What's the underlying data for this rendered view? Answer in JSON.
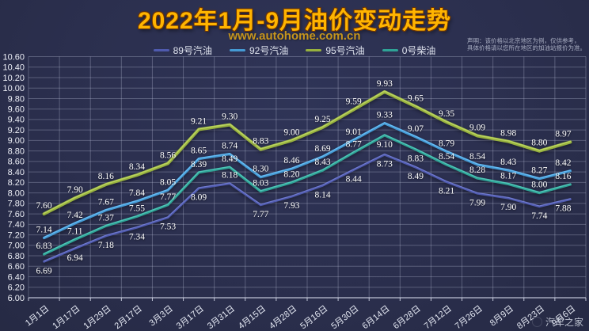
{
  "header": {
    "title": "2022年1月-9月油价变动走势",
    "subtitle": "www.autohome.com.cn",
    "disclaimer_line1": "声明：该价格以北京地区为例，仅供参考，",
    "disclaimer_line2": "具体价格请以您所在地区的加油站报价为准。"
  },
  "watermark": "汽车之家",
  "colors": {
    "background": "#2b2f4e",
    "title": "#ffb400",
    "subtitle": "#c6951d",
    "grid": "rgba(198,205,228,0.30)",
    "axis_text": "#eef0f7",
    "value_label": "#ffffff"
  },
  "chart_data": {
    "type": "line",
    "title": "2022年1月-9月油价变动走势",
    "xlabel": "",
    "ylabel": "",
    "ylim": [
      6.0,
      10.6
    ],
    "ytick_step": 0.2,
    "grid": true,
    "legend_position": "top",
    "categories": [
      "1月1日",
      "1月17日",
      "1月29日",
      "2月17日",
      "3月3日",
      "3月17日",
      "3月31日",
      "4月15日",
      "4月28日",
      "5月16日",
      "5月30日",
      "6月14日",
      "6月28日",
      "7月12日",
      "7月26日",
      "8月9日",
      "8月23日",
      "9月6日"
    ],
    "series": [
      {
        "name": "89号汽油",
        "color": "#4f5aae",
        "stroke_width": 2.8,
        "label_side": "below",
        "label_side_overrides": {
          "6": "above"
        },
        "values": [
          6.69,
          6.94,
          7.18,
          7.34,
          7.53,
          8.09,
          8.18,
          7.77,
          7.93,
          8.14,
          8.44,
          8.73,
          8.49,
          8.21,
          7.99,
          7.9,
          7.74,
          7.88
        ]
      },
      {
        "name": "92号汽油",
        "color": "#459ad4",
        "stroke_width": 3.2,
        "label_side": "above",
        "label_side_overrides": {},
        "values": [
          7.14,
          7.42,
          7.67,
          7.84,
          8.05,
          8.65,
          8.74,
          8.3,
          8.46,
          8.69,
          9.01,
          9.33,
          9.07,
          8.79,
          8.54,
          8.43,
          8.27,
          8.42
        ]
      },
      {
        "name": "95号汽油",
        "color": "#97b13e",
        "stroke_width": 4.0,
        "label_side": "above",
        "label_side_overrides": {},
        "values": [
          7.6,
          7.9,
          8.16,
          8.34,
          8.56,
          9.21,
          9.3,
          8.83,
          9.0,
          9.25,
          9.59,
          9.93,
          9.65,
          9.35,
          9.09,
          8.98,
          8.8,
          8.97
        ]
      },
      {
        "name": "0号柴油",
        "color": "#2fa396",
        "stroke_width": 3.2,
        "label_side": "above",
        "label_side_overrides": {
          "11": "below",
          "12": "below"
        },
        "values": [
          6.83,
          7.11,
          7.37,
          7.55,
          7.77,
          8.39,
          8.49,
          8.03,
          8.2,
          8.43,
          8.77,
          9.1,
          8.83,
          8.54,
          8.28,
          8.17,
          8.0,
          8.16
        ]
      }
    ]
  }
}
